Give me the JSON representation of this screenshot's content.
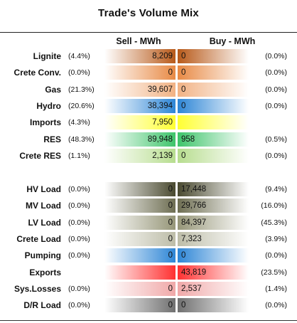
{
  "chart_data": {
    "type": "table",
    "title": "Trade's Volume Mix",
    "sell_header": "Sell - MWh",
    "buy_header": "Buy - MWh",
    "groups": [
      [
        {
          "label": "Lignite",
          "sell_pct": "(4.4%)",
          "sell": "8,209",
          "buy": "0",
          "buy_pct": "(0.0%)",
          "color": "#b85a1a"
        },
        {
          "label": "Crete Conv.",
          "sell_pct": "(0.0%)",
          "sell": "0",
          "buy": "0",
          "buy_pct": "(0.0%)",
          "color": "#e88a45"
        },
        {
          "label": "Gas",
          "sell_pct": "(21.3%)",
          "sell": "39,607",
          "buy": "0",
          "buy_pct": "(0.0%)",
          "color": "#f1b284"
        },
        {
          "label": "Hydro",
          "sell_pct": "(20.6%)",
          "sell": "38,394",
          "buy": "0",
          "buy_pct": "(0.0%)",
          "color": "#2e86d6"
        },
        {
          "label": "Imports",
          "sell_pct": "(4.3%)",
          "sell": "7,950",
          "buy": "",
          "buy_pct": "",
          "color": "#ffff33"
        },
        {
          "label": "RES",
          "sell_pct": "(48.3%)",
          "sell": "89,948",
          "buy": "958",
          "buy_pct": "(0.5%)",
          "color": "#3ec46a"
        },
        {
          "label": "Crete RES",
          "sell_pct": "(1.1%)",
          "sell": "2,139",
          "buy": "0",
          "buy_pct": "(0.0%)",
          "color": "#b7dd8f"
        }
      ],
      [
        {
          "label": "HV Load",
          "sell_pct": "(0.0%)",
          "sell": "0",
          "buy": "17,448",
          "buy_pct": "(9.4%)",
          "color": "#4a4a30"
        },
        {
          "label": "MV Load",
          "sell_pct": "(0.0%)",
          "sell": "0",
          "buy": "29,766",
          "buy_pct": "(16.0%)",
          "color": "#6e6e52"
        },
        {
          "label": "LV Load",
          "sell_pct": "(0.0%)",
          "sell": "0",
          "buy": "84,397",
          "buy_pct": "(45.3%)",
          "color": "#969678"
        },
        {
          "label": "Crete Load",
          "sell_pct": "(0.0%)",
          "sell": "0",
          "buy": "7,323",
          "buy_pct": "(3.9%)",
          "color": "#bdbda8"
        },
        {
          "label": "Pumping",
          "sell_pct": "(0.0%)",
          "sell": "0",
          "buy": "0",
          "buy_pct": "(0.0%)",
          "color": "#2e86d6"
        },
        {
          "label": "Exports",
          "sell_pct": "",
          "sell": "",
          "buy": "43,819",
          "buy_pct": "(23.5%)",
          "color": "#ff3030"
        },
        {
          "label": "Sys.Losses",
          "sell_pct": "(0.0%)",
          "sell": "0",
          "buy": "2,537",
          "buy_pct": "(1.4%)",
          "color": "#f0a8a8"
        },
        {
          "label": "D/R Load",
          "sell_pct": "(0.0%)",
          "sell": "0",
          "buy": "0",
          "buy_pct": "(0.0%)",
          "color": "#707070"
        }
      ]
    ]
  }
}
